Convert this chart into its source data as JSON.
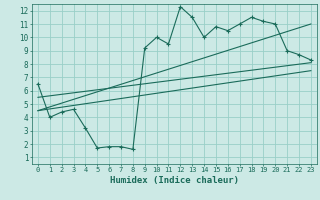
{
  "title": "",
  "xlabel": "Humidex (Indice chaleur)",
  "ylabel": "",
  "bg_color": "#cce9e5",
  "grid_color": "#99cfc8",
  "line_color": "#1a6b5a",
  "xlim": [
    -0.5,
    23.5
  ],
  "ylim": [
    0.5,
    12.5
  ],
  "xticks": [
    0,
    1,
    2,
    3,
    4,
    5,
    6,
    7,
    8,
    9,
    10,
    11,
    12,
    13,
    14,
    15,
    16,
    17,
    18,
    19,
    20,
    21,
    22,
    23
  ],
  "yticks": [
    1,
    2,
    3,
    4,
    5,
    6,
    7,
    8,
    9,
    10,
    11,
    12
  ],
  "main_x": [
    0,
    1,
    2,
    3,
    4,
    5,
    6,
    7,
    8,
    9,
    10,
    11,
    12,
    13,
    14,
    15,
    16,
    17,
    18,
    19,
    20,
    21,
    22,
    23
  ],
  "main_y": [
    6.5,
    4.0,
    4.4,
    4.6,
    3.2,
    1.7,
    1.8,
    1.8,
    1.6,
    9.2,
    10.0,
    9.5,
    12.3,
    11.5,
    10.0,
    10.8,
    10.5,
    11.0,
    11.5,
    11.2,
    11.0,
    9.0,
    8.7,
    8.3
  ],
  "line1_x": [
    0,
    23
  ],
  "line1_y": [
    5.5,
    8.1
  ],
  "line2_x": [
    0,
    23
  ],
  "line2_y": [
    4.5,
    11.0
  ],
  "line3_x": [
    0,
    23
  ],
  "line3_y": [
    4.5,
    7.5
  ],
  "marker": "+"
}
